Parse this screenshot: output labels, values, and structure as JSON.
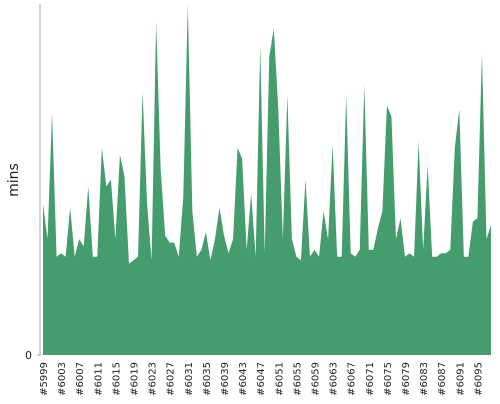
{
  "chart_data": {
    "type": "area",
    "y_label": "mins",
    "color": "#459d6d",
    "categories": [
      "#5999",
      null,
      null,
      null,
      "#6003",
      null,
      null,
      null,
      "#6007",
      null,
      null,
      null,
      "#6011",
      null,
      null,
      null,
      "#6015",
      null,
      null,
      null,
      "#6019",
      null,
      null,
      null,
      "#6023",
      null,
      null,
      null,
      "#6027",
      null,
      null,
      null,
      "#6031",
      null,
      null,
      null,
      "#6035",
      null,
      null,
      null,
      "#6039",
      null,
      null,
      null,
      "#6043",
      null,
      null,
      null,
      "#6047",
      null,
      null,
      null,
      "#6051",
      null,
      null,
      null,
      "#6055",
      null,
      null,
      null,
      "#6059",
      null,
      null,
      null,
      "#6063",
      null,
      null,
      null,
      "#6067",
      null,
      null,
      null,
      "#6071",
      null,
      null,
      null,
      "#6075",
      null,
      null,
      null,
      "#6079",
      null,
      null,
      null,
      "#6083",
      null,
      null,
      null,
      "#6087",
      null,
      null,
      null,
      "#6091",
      null,
      null,
      null,
      "#6095",
      null,
      null,
      null
    ],
    "values": [
      43,
      33,
      69,
      28,
      29,
      28,
      42,
      28,
      33,
      31,
      48,
      28,
      28,
      59,
      48,
      50,
      33,
      57,
      51,
      26,
      27,
      28,
      75,
      43,
      27,
      95,
      53,
      34,
      32,
      32,
      28,
      45,
      100,
      41,
      28,
      30,
      35,
      27,
      33,
      42,
      34,
      29,
      33,
      59,
      56,
      30,
      46,
      28,
      88,
      29,
      85,
      93,
      70,
      33,
      74,
      33,
      28,
      27,
      50,
      28,
      30,
      28,
      41,
      33,
      60,
      28,
      28,
      74,
      29,
      28,
      30,
      77,
      30,
      30,
      36,
      41,
      71,
      68,
      33,
      39,
      28,
      29,
      28,
      61,
      30,
      54,
      28,
      28,
      29,
      29,
      30,
      59,
      70,
      28,
      28,
      38,
      39,
      86,
      33,
      37
    ],
    "ylim": [
      0,
      100
    ],
    "yticks": [
      0
    ]
  }
}
